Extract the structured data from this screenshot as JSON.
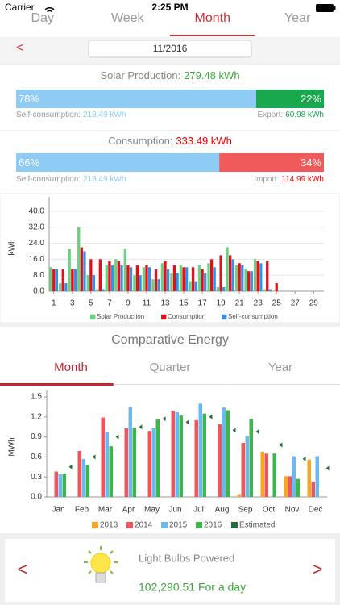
{
  "status_bar": {
    "carrier": "Carrier",
    "time": "2:25 PM"
  },
  "period_tabs": {
    "items": [
      "Day",
      "Week",
      "Month",
      "Year"
    ],
    "selected": 2
  },
  "date": "11/2016",
  "solar": {
    "label": "Solar Production:",
    "value": "279.48 kWh",
    "self_share": {
      "value": 78,
      "label": "78%"
    },
    "export_share": {
      "value": 22,
      "label": "22%"
    },
    "self_label": "Self-consumption:",
    "self_value": "218.49 kWh",
    "export_label": "Export:",
    "export_value": "60.98 kWh"
  },
  "consumption": {
    "label": "Consumption:",
    "value": "333.49 kWh",
    "self_share": {
      "value": 66,
      "label": "66%"
    },
    "import_share": {
      "value": 34,
      "label": "34%"
    },
    "self_label": "Self-consumption:",
    "self_value": "218.49 kWh",
    "import_label": "Import:",
    "import_value": "114.99 kWh"
  },
  "daily_chart": {
    "type": "bar",
    "y_label": "kWh",
    "grid": true,
    "x": [
      1,
      2,
      3,
      4,
      5,
      6,
      7,
      8,
      9,
      10,
      11,
      12,
      13,
      14,
      15,
      16,
      17,
      18,
      19,
      20,
      21,
      22,
      23,
      24,
      25,
      26,
      27,
      28,
      29,
      30
    ],
    "xlim": [
      0.5,
      30.1
    ],
    "xticks": [
      1,
      3,
      5,
      7,
      9,
      11,
      13,
      15,
      17,
      19,
      21,
      23,
      25,
      27,
      29
    ],
    "ylim": [
      0,
      44
    ],
    "yticks": [
      {
        "value": 0,
        "label": "0.0"
      },
      {
        "value": 8,
        "label": "8.0"
      },
      {
        "value": 16,
        "label": "16.0"
      },
      {
        "value": 24,
        "label": "24.0"
      },
      {
        "value": 32,
        "label": "32.0"
      },
      {
        "value": 40,
        "label": "40.0"
      }
    ],
    "series": [
      {
        "name": "Solar Production",
        "color": "#6fcf7f",
        "values": [
          12,
          4,
          21,
          32,
          8,
          1,
          13,
          16,
          21,
          8,
          12,
          6,
          14,
          9,
          13,
          5,
          13,
          14,
          2,
          22,
          13,
          11,
          16,
          1,
          0,
          0,
          0,
          0,
          0,
          0
        ]
      },
      {
        "name": "Consumption",
        "color": "#e3101a",
        "values": [
          11,
          11,
          11,
          22,
          16,
          16,
          15,
          15,
          13,
          13,
          13,
          11,
          15,
          13,
          12,
          12,
          11,
          16,
          18,
          18,
          14,
          10,
          15,
          15,
          4,
          0,
          0,
          0,
          0,
          0
        ]
      },
      {
        "name": "Self-consumption",
        "color": "#3b8fe0",
        "values": [
          11,
          4,
          11,
          20,
          8,
          1,
          13,
          13,
          12,
          8,
          12,
          6,
          11,
          9,
          12,
          5,
          9,
          12,
          2,
          16,
          13,
          10,
          14,
          1,
          0,
          0,
          0,
          0,
          0,
          0
        ]
      }
    ]
  },
  "comparative": {
    "title": "Comparative Energy",
    "tabs": [
      "Month",
      "Quarter",
      "Year"
    ],
    "selected": 0,
    "chart": {
      "type": "bar",
      "y_label": "MWh",
      "grid": false,
      "categories": [
        "Jan",
        "Feb",
        "Mar",
        "Apr",
        "May",
        "Jun",
        "Jul",
        "Aug",
        "Sep",
        "Oct",
        "Nov",
        "Dec"
      ],
      "ylim": [
        0,
        1.5
      ],
      "yticks": [
        {
          "value": 0,
          "label": "0.0"
        },
        {
          "value": 0.3,
          "label": "0.3"
        },
        {
          "value": 0.6,
          "label": "0.6"
        },
        {
          "value": 0.9,
          "label": "0.9"
        },
        {
          "value": 1.2,
          "label": "1.2"
        },
        {
          "value": 1.5,
          "label": "1.5"
        }
      ],
      "series": [
        {
          "name": "2013",
          "color": "#f5a623",
          "values": [
            null,
            null,
            null,
            null,
            null,
            null,
            null,
            null,
            0.03,
            0.68,
            0.31,
            0.56
          ]
        },
        {
          "name": "2014",
          "color": "#f0555a",
          "values": [
            0.38,
            0.69,
            1.19,
            1.03,
            0.99,
            1.29,
            1.15,
            1.09,
            0.81,
            0.65,
            0.31,
            0.23
          ]
        },
        {
          "name": "2015",
          "color": "#6cb8f0",
          "values": [
            0.34,
            0.57,
            0.97,
            1.35,
            1.03,
            1.27,
            1.4,
            1.34,
            0.91,
            null,
            0.61,
            0.61
          ]
        },
        {
          "name": "2016",
          "color": "#3cb54a",
          "values": [
            0.35,
            0.48,
            0.76,
            1.04,
            1.16,
            1.22,
            1.25,
            1.3,
            1.17,
            0.65,
            0.27,
            null
          ]
        },
        {
          "name": "Estimated",
          "color": "#22703a",
          "marker": "triangle",
          "values": [
            0.45,
            0.6,
            0.9,
            1.05,
            1.17,
            1.12,
            1.2,
            1.0,
            0.98,
            0.78,
            0.57,
            0.43
          ]
        }
      ]
    }
  },
  "bulbs": {
    "title": "Light Bulbs Powered",
    "value": "102,290.51 For a day"
  }
}
